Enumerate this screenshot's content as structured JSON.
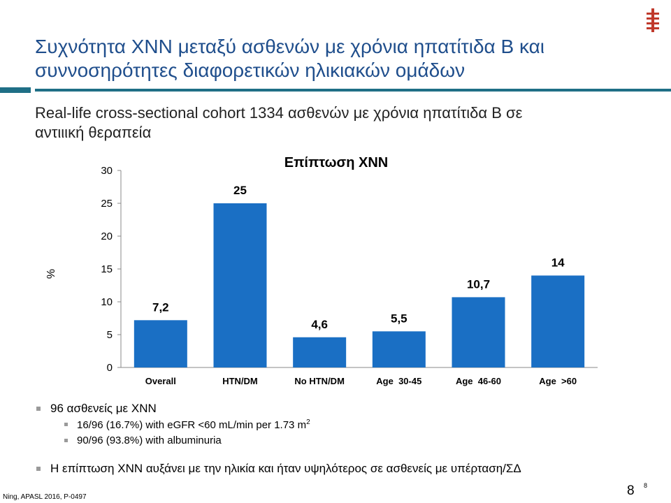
{
  "slide": {
    "title_line1": "Συχνότητα ΧΝΝ μεταξύ ασθενών με χρόνια ηπατίτιδα Β και",
    "title_line2": "συννοσηρότητες διαφορετικών ηλικιακών ομάδων",
    "subtitle_line1": "Real-life cross-sectional cohort 1334 ασθενών με χρόνια ηπατίτιδα Β σε",
    "subtitle_line2": "αντιιική θεραπεία",
    "bullet1": "96 ασθενείς με ΧΝΝ",
    "bullet2_main": "16/96 (16.7%) with eGFR <60 mL/min  per 1.73 m",
    "bullet2_sup": "2",
    "bullet3": "90/96 (93.8%) with albuminuria",
    "bullet4": "Η επίπτωση ΧΝΝ αυξάνει με την ηλικία και ήταν υψηλότερος σε ασθενείς με υπέρταση/ΣΔ",
    "source": "Ning, APASL 2016, P-0497",
    "page_number": "8",
    "page_number_small": "8"
  },
  "colors": {
    "title": "#1f4e8c",
    "bar": "#1a6fc4",
    "rule": "#1f6f86",
    "logo": "#c0392b"
  },
  "chart_data": {
    "type": "bar",
    "title": "Επίπτωση ΧΝΝ",
    "xlabel": "",
    "ylabel": "%",
    "ylim": [
      0,
      30
    ],
    "yticks": [
      0,
      5,
      10,
      15,
      20,
      25,
      30
    ],
    "categories": [
      "Overall",
      "HTN/DM",
      "No HTN/DM",
      "Age  30-45",
      "Age  46-60",
      "Age  >60"
    ],
    "values": [
      7.2,
      25,
      4.6,
      5.5,
      10.7,
      14
    ],
    "value_labels": [
      "7,2",
      "25",
      "4,6",
      "5,5",
      "10,7",
      "14"
    ],
    "grid": false,
    "legend": "none"
  }
}
